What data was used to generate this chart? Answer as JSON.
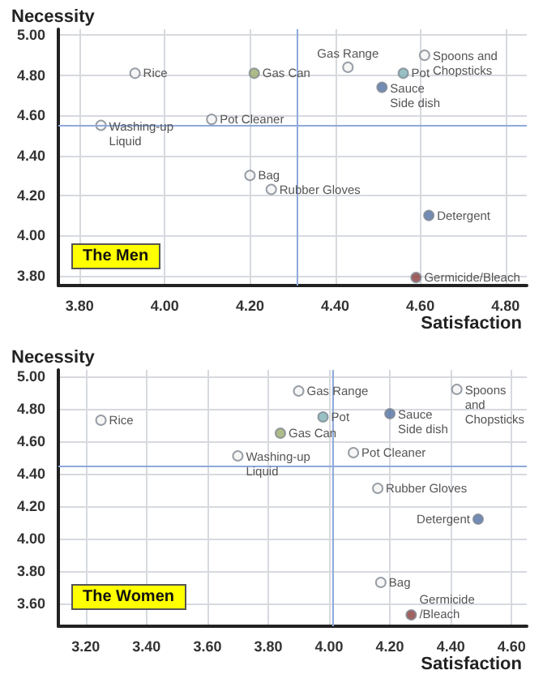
{
  "chart_data": [
    {
      "type": "scatter",
      "title": "The Men",
      "xlabel": "Satisfaction",
      "ylabel": "Necessity",
      "grid": true,
      "marker": "circle",
      "x": [
        3.93,
        4.21,
        4.43,
        4.56,
        4.61,
        4.51,
        3.85,
        4.11,
        4.2,
        4.25,
        4.62,
        4.59
      ],
      "values": [
        4.81,
        4.81,
        4.84,
        4.81,
        4.9,
        4.74,
        4.55,
        4.58,
        4.3,
        4.23,
        4.1,
        3.79
      ],
      "colors": [
        "#f4f4f4",
        "#9bab6b",
        "#f4f4f4",
        "#7fb2b5",
        "#f4f4f4",
        "#4f6fa3",
        "#f4f4f4",
        "#f4f4f4",
        "#f4f4f4",
        "#f4f4f4",
        "#4f6fa3",
        "#8b3a3a"
      ],
      "annotations": [
        {
          "text": "Rice",
          "x": 3.93,
          "y": 4.81
        },
        {
          "text": "Gas Can",
          "x": 4.21,
          "y": 4.81
        },
        {
          "text": "Gas Range",
          "x": 4.43,
          "y": 4.84
        },
        {
          "text": "Pot",
          "x": 4.56,
          "y": 4.81
        },
        {
          "text": "Spoons and\nChopsticks",
          "x": 4.61,
          "y": 4.9
        },
        {
          "text": "Sauce\nSide dish",
          "x": 4.51,
          "y": 4.74
        },
        {
          "text": "Washing-up\nLiquid",
          "x": 3.85,
          "y": 4.55
        },
        {
          "text": "Pot Cleaner",
          "x": 4.11,
          "y": 4.58
        },
        {
          "text": "Bag",
          "x": 4.2,
          "y": 4.3
        },
        {
          "text": "Rubber Gloves",
          "x": 4.25,
          "y": 4.23
        },
        {
          "text": "Detergent",
          "x": 4.62,
          "y": 4.1
        },
        {
          "text": "Germicide/Bleach",
          "x": 4.59,
          "y": 3.79
        }
      ],
      "ref_lines": [
        {
          "axis": "x",
          "value": 4.31,
          "color": "#8eaadb"
        },
        {
          "axis": "y",
          "value": 4.55,
          "color": "#8eaadb"
        }
      ],
      "xlim": [
        3.75,
        4.85
      ],
      "ylim": [
        3.75,
        5.03
      ],
      "xticks": [
        {
          "value": 3.8,
          "label": "3.80"
        },
        {
          "value": 4,
          "label": "4.00"
        },
        {
          "value": 4.2,
          "label": "4.20"
        },
        {
          "value": 4.4,
          "label": "4.40"
        },
        {
          "value": 4.6,
          "label": "4.60"
        },
        {
          "value": 4.8,
          "label": "4.80"
        }
      ],
      "yticks": [
        {
          "value": 3.8,
          "label": "3.80"
        },
        {
          "value": 4,
          "label": "4.00"
        },
        {
          "value": 4.2,
          "label": "4.20"
        },
        {
          "value": 4.4,
          "label": "4.40"
        },
        {
          "value": 4.6,
          "label": "4.60"
        },
        {
          "value": 4.8,
          "label": "4.80"
        },
        {
          "value": 5,
          "label": "5.00"
        }
      ]
    },
    {
      "type": "scatter",
      "title": "The Women",
      "xlabel": "Satisfaction",
      "ylabel": "Necessity",
      "grid": true,
      "marker": "circle",
      "x": [
        3.25,
        3.9,
        3.98,
        4.2,
        4.42,
        3.84,
        3.7,
        4.08,
        4.16,
        4.49,
        4.17,
        4.27
      ],
      "values": [
        4.73,
        4.91,
        4.75,
        4.77,
        4.92,
        4.65,
        4.51,
        4.53,
        4.31,
        4.12,
        3.73,
        3.53
      ],
      "colors": [
        "#f4f4f4",
        "#f4f4f4",
        "#7fb2b5",
        "#4f6fa3",
        "#f4f4f4",
        "#9bab6b",
        "#f4f4f4",
        "#f4f4f4",
        "#f4f4f4",
        "#4f6fa3",
        "#f4f4f4",
        "#8b3a3a"
      ],
      "annotations": [
        {
          "text": "Rice",
          "x": 3.25,
          "y": 4.73
        },
        {
          "text": "Gas Range",
          "x": 3.9,
          "y": 4.91
        },
        {
          "text": "Pot",
          "x": 3.98,
          "y": 4.75
        },
        {
          "text": "Sauce\nSide dish",
          "x": 4.2,
          "y": 4.77
        },
        {
          "text": "Spoons\nand\nChopsticks",
          "x": 4.42,
          "y": 4.92
        },
        {
          "text": "Gas Can",
          "x": 3.84,
          "y": 4.65
        },
        {
          "text": "Washing-up\nLiquid",
          "x": 3.7,
          "y": 4.51
        },
        {
          "text": "Pot Cleaner",
          "x": 4.08,
          "y": 4.53
        },
        {
          "text": "Rubber Gloves",
          "x": 4.16,
          "y": 4.31
        },
        {
          "text": "Detergent",
          "x": 4.49,
          "y": 4.12
        },
        {
          "text": "Bag",
          "x": 4.17,
          "y": 3.73
        },
        {
          "text": "Germicide\n/Bleach",
          "x": 4.27,
          "y": 3.53
        }
      ],
      "ref_lines": [
        {
          "axis": "x",
          "value": 4.01,
          "color": "#8eaadb"
        },
        {
          "axis": "y",
          "value": 4.45,
          "color": "#8eaadb"
        }
      ],
      "xlim": [
        3.11,
        4.65
      ],
      "ylim": [
        3.46,
        5.04
      ],
      "xticks": [
        {
          "value": 3.2,
          "label": "3.20"
        },
        {
          "value": 3.4,
          "label": "3.40"
        },
        {
          "value": 3.6,
          "label": "3.60"
        },
        {
          "value": 3.8,
          "label": "3.80"
        },
        {
          "value": 4,
          "label": "4.00"
        },
        {
          "value": 4.2,
          "label": "4.20"
        },
        {
          "value": 4.4,
          "label": "4.40"
        },
        {
          "value": 4.6,
          "label": "4.60"
        }
      ],
      "yticks": [
        {
          "value": 3.6,
          "label": "3.60"
        },
        {
          "value": 3.8,
          "label": "3.80"
        },
        {
          "value": 4,
          "label": "4.00"
        },
        {
          "value": 4.2,
          "label": "4.20"
        },
        {
          "value": 4.4,
          "label": "4.40"
        },
        {
          "value": 4.6,
          "label": "4.60"
        },
        {
          "value": 4.8,
          "label": "4.80"
        },
        {
          "value": 5,
          "label": "5.00"
        }
      ]
    }
  ]
}
